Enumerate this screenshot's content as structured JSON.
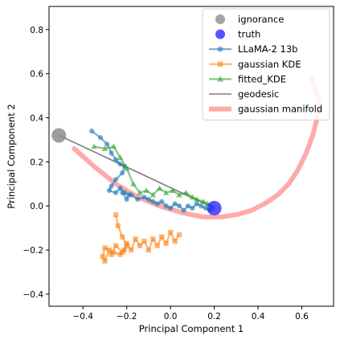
{
  "chart_data": {
    "type": "line",
    "xlabel": "Principal Component 1",
    "ylabel": "Principal Component 2",
    "xlim": [
      -0.555,
      0.745
    ],
    "ylim": [
      -0.455,
      0.905
    ],
    "xticks": [
      "−0.4",
      "−0.2",
      "0.0",
      "0.2",
      "0.4",
      "0.6"
    ],
    "yticks": [
      "−0.4",
      "−0.2",
      "0.0",
      "0.2",
      "0.4",
      "0.6",
      "0.8"
    ],
    "xtick_values": [
      -0.4,
      -0.2,
      0.0,
      0.2,
      0.4,
      0.6
    ],
    "ytick_values": [
      -0.4,
      -0.2,
      0.0,
      0.2,
      0.4,
      0.6,
      0.8
    ],
    "grid": false,
    "legend_position": "top-right",
    "series": [
      {
        "name": "gaussian manifold",
        "kind": "thick-line",
        "color": "#ffaaaa",
        "x": [
          -0.44,
          -0.35,
          -0.25,
          -0.15,
          -0.05,
          0.05,
          0.15,
          0.23,
          0.3,
          0.37,
          0.43,
          0.49,
          0.54,
          0.58,
          0.62,
          0.65,
          0.67,
          0.68,
          0.665,
          0.645
        ],
        "y": [
          0.26,
          0.18,
          0.1,
          0.04,
          0.0,
          -0.03,
          -0.05,
          -0.05,
          -0.04,
          -0.02,
          0.01,
          0.05,
          0.1,
          0.16,
          0.24,
          0.32,
          0.4,
          0.46,
          0.52,
          0.58
        ]
      },
      {
        "name": "geodesic",
        "kind": "line",
        "color": "#7f7f7f",
        "x": [
          -0.51,
          0.2
        ],
        "y": [
          0.32,
          -0.01
        ]
      },
      {
        "name": "LLaMA-2 13b",
        "kind": "line-marker",
        "marker": "circle",
        "color": "#1f77b4",
        "x": [
          -0.36,
          -0.32,
          -0.29,
          -0.27,
          -0.25,
          -0.23,
          -0.21,
          -0.22,
          -0.25,
          -0.27,
          -0.28,
          -0.25,
          -0.23,
          -0.21,
          -0.19,
          -0.2,
          -0.22,
          -0.18,
          -0.15,
          -0.12,
          -0.1,
          -0.08,
          -0.06,
          -0.04,
          -0.02,
          0.0,
          0.02,
          0.04,
          0.06,
          0.08,
          0.1,
          0.12,
          0.14,
          0.16,
          0.18,
          0.19
        ],
        "y": [
          0.34,
          0.31,
          0.28,
          0.24,
          0.21,
          0.19,
          0.18,
          0.15,
          0.12,
          0.09,
          0.07,
          0.06,
          0.08,
          0.06,
          0.05,
          0.03,
          0.06,
          0.05,
          0.03,
          0.04,
          0.03,
          0.02,
          0.01,
          0.02,
          0.0,
          -0.01,
          0.01,
          0.0,
          -0.02,
          0.0,
          -0.01,
          0.01,
          0.0,
          -0.01,
          -0.02,
          -0.01
        ]
      },
      {
        "name": "gaussian KDE",
        "kind": "line-marker",
        "marker": "square",
        "color": "#ff7f0e",
        "x": [
          -0.25,
          -0.24,
          -0.22,
          -0.2,
          -0.21,
          -0.23,
          -0.26,
          -0.3,
          -0.31,
          -0.3,
          -0.28,
          -0.27,
          -0.25,
          -0.22,
          -0.2,
          -0.18,
          -0.16,
          -0.14,
          -0.12,
          -0.1,
          -0.08,
          -0.06,
          -0.04,
          -0.02,
          0.0,
          0.02,
          0.04
        ],
        "y": [
          -0.04,
          -0.09,
          -0.14,
          -0.18,
          -0.2,
          -0.22,
          -0.21,
          -0.19,
          -0.23,
          -0.25,
          -0.2,
          -0.22,
          -0.18,
          -0.21,
          -0.17,
          -0.2,
          -0.15,
          -0.18,
          -0.16,
          -0.2,
          -0.15,
          -0.18,
          -0.14,
          -0.17,
          -0.12,
          -0.16,
          -0.13
        ]
      },
      {
        "name": "fitted_KDE",
        "kind": "line-marker",
        "marker": "triangle",
        "color": "#2ca02c",
        "x": [
          -0.35,
          -0.3,
          -0.26,
          -0.23,
          -0.2,
          -0.17,
          -0.14,
          -0.11,
          -0.08,
          -0.05,
          -0.02,
          0.01,
          0.04,
          0.07,
          0.1,
          0.12,
          0.15,
          0.17,
          0.19
        ],
        "y": [
          0.27,
          0.26,
          0.27,
          0.22,
          0.17,
          0.1,
          0.06,
          0.07,
          0.05,
          0.08,
          0.06,
          0.07,
          0.05,
          0.06,
          0.04,
          0.03,
          0.02,
          0.01,
          0.0
        ]
      },
      {
        "name": "ignorance",
        "kind": "point",
        "color": "#8c8c8c",
        "x": [
          -0.51
        ],
        "y": [
          0.32
        ]
      },
      {
        "name": "truth",
        "kind": "point",
        "color": "#2b2bff",
        "x": [
          0.2
        ],
        "y": [
          -0.01
        ]
      }
    ],
    "legend": [
      {
        "name": "ignorance",
        "kind": "point",
        "color": "#8c8c8c"
      },
      {
        "name": "truth",
        "kind": "point",
        "color": "#2b2bff"
      },
      {
        "name": "LLaMA-2 13b",
        "kind": "line-marker",
        "marker": "circle",
        "color": "#1f77b4"
      },
      {
        "name": "gaussian KDE",
        "kind": "line-marker",
        "marker": "square",
        "color": "#ff7f0e"
      },
      {
        "name": "fitted_KDE",
        "kind": "line-marker",
        "marker": "triangle",
        "color": "#2ca02c"
      },
      {
        "name": "geodesic",
        "kind": "line",
        "color": "#7f7f7f"
      },
      {
        "name": "gaussian manifold",
        "kind": "thick-line",
        "color": "#ffaaaa"
      }
    ]
  }
}
